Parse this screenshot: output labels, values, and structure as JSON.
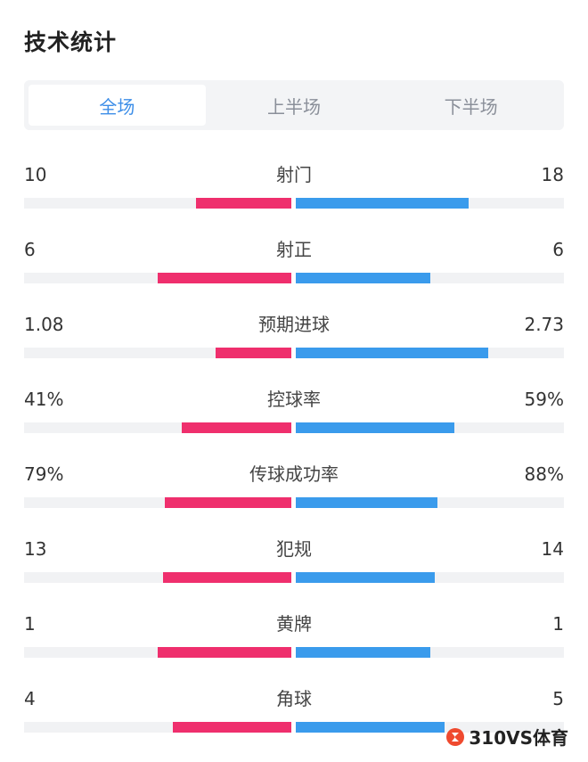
{
  "header": {
    "title": "技术统计"
  },
  "tabs": [
    {
      "label": "全场",
      "active": true
    },
    {
      "label": "上半场",
      "active": false
    },
    {
      "label": "下半场",
      "active": false
    }
  ],
  "colors": {
    "home": "#ef2f6d",
    "away": "#3a9bec",
    "tab_active": "#3d8ee8"
  },
  "stats": [
    {
      "label": "射门",
      "home": "10",
      "away": "18",
      "home_share": 0.357,
      "away_share": 0.643
    },
    {
      "label": "射正",
      "home": "6",
      "away": "6",
      "home_share": 0.5,
      "away_share": 0.5
    },
    {
      "label": "预期进球",
      "home": "1.08",
      "away": "2.73",
      "home_share": 0.283,
      "away_share": 0.717
    },
    {
      "label": "控球率",
      "home": "41%",
      "away": "59%",
      "home_share": 0.41,
      "away_share": 0.59
    },
    {
      "label": "传球成功率",
      "home": "79%",
      "away": "88%",
      "home_share": 0.473,
      "away_share": 0.527
    },
    {
      "label": "犯规",
      "home": "13",
      "away": "14",
      "home_share": 0.481,
      "away_share": 0.519
    },
    {
      "label": "黄牌",
      "home": "1",
      "away": "1",
      "home_share": 0.5,
      "away_share": 0.5
    },
    {
      "label": "角球",
      "home": "4",
      "away": "5",
      "home_share": 0.444,
      "away_share": 0.556
    }
  ],
  "watermark": {
    "text": "310VS体育"
  }
}
